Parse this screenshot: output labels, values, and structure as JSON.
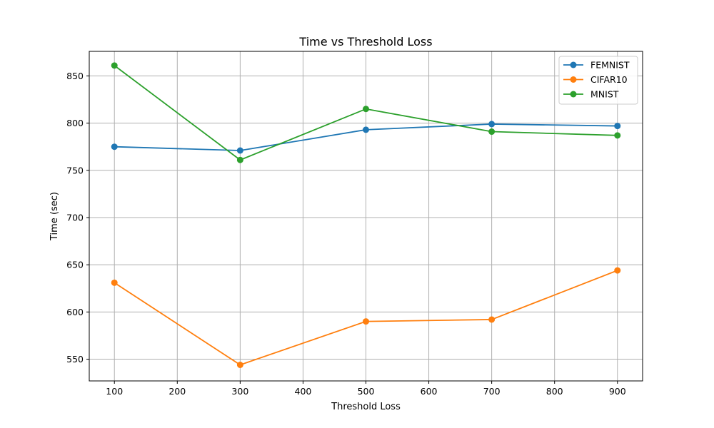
{
  "chart_data": {
    "type": "line",
    "title": "Time vs Threshold Loss",
    "xlabel": "Threshold Loss",
    "ylabel": "Time (sec)",
    "x": [
      100,
      300,
      500,
      700,
      900
    ],
    "xlim": [
      60,
      940
    ],
    "ylim": [
      527,
      876
    ],
    "xticks": [
      100,
      200,
      300,
      400,
      500,
      600,
      700,
      800,
      900
    ],
    "yticks": [
      550,
      600,
      650,
      700,
      750,
      800,
      850
    ],
    "grid": true,
    "legend_position": "top-right",
    "series": [
      {
        "name": "FEMNIST",
        "color": "#1f77b4",
        "values": [
          775,
          771,
          793,
          799,
          797
        ]
      },
      {
        "name": "CIFAR10",
        "color": "#ff7f0e",
        "values": [
          631,
          544,
          590,
          592,
          644
        ]
      },
      {
        "name": "MNIST",
        "color": "#2ca02c",
        "values": [
          861,
          761,
          815,
          791,
          787
        ]
      }
    ]
  }
}
